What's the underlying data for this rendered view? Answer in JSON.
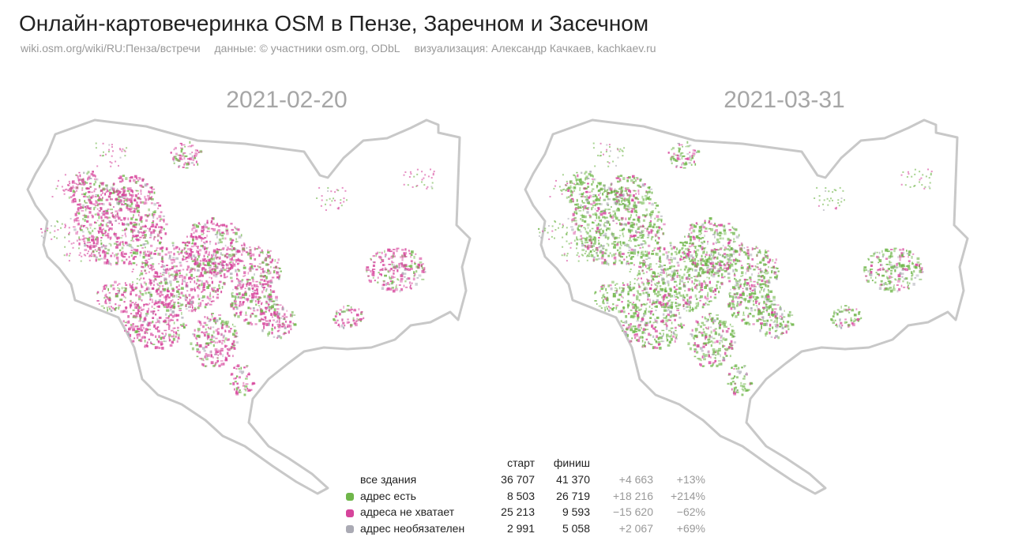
{
  "header": {
    "title": "Онлайн-картовечеринка OSM в Пензе, Заречном и Засечном",
    "credits": [
      "wiki.osm.org/wiki/RU:Пенза/встречи",
      "данные: © участники osm.org, ODbL",
      "визуализация: Александр Качкаев, kachkaev.ru"
    ]
  },
  "maps": [
    {
      "date": "2021-02-20",
      "share": {
        "green": 0.23,
        "magenta": 0.69,
        "gray": 0.08
      }
    },
    {
      "date": "2021-03-31",
      "share": {
        "green": 0.65,
        "magenta": 0.23,
        "gray": 0.12
      }
    }
  ],
  "colors": {
    "green": "#6fb64a",
    "magenta": "#d6449b",
    "gray": "#aaaab4",
    "outline": "#c8c8c8"
  },
  "stats": {
    "headers": {
      "start": "старт",
      "end": "финиш"
    },
    "rows": [
      {
        "label": "все здания",
        "swatch": "",
        "start": "36 707",
        "end": "41 370",
        "delta": "+4 663",
        "pct": "+13%"
      },
      {
        "label": "адрес есть",
        "swatch": "green",
        "start": "8 503",
        "end": "26 719",
        "delta": "+18 216",
        "pct": "+214%"
      },
      {
        "label": "адреса не хватает",
        "swatch": "magenta",
        "start": "25 213",
        "end": "9 593",
        "delta": "−15 620",
        "pct": "−62%"
      },
      {
        "label": "адрес необязателен",
        "swatch": "gray",
        "start": "2 991",
        "end": "5 058",
        "delta": "+2 067",
        "pct": "+69%"
      }
    ]
  }
}
